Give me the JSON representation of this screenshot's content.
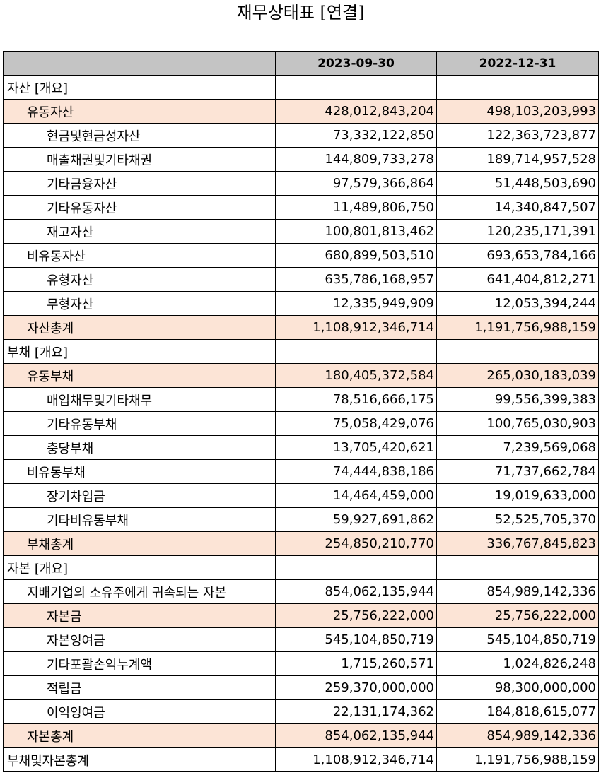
{
  "title": "재무상태표 [연결]",
  "columns": [
    "",
    "2023-09-30",
    "2022-12-31"
  ],
  "rows": [
    {
      "label": "자산 [개요]",
      "level": 0,
      "highlight": false,
      "v1": "",
      "v2": ""
    },
    {
      "label": "유동자산",
      "level": 1,
      "highlight": true,
      "v1": "428,012,843,204",
      "v2": "498,103,203,993"
    },
    {
      "label": "현금및현금성자산",
      "level": 2,
      "highlight": false,
      "v1": "73,332,122,850",
      "v2": "122,363,723,877"
    },
    {
      "label": "매출채권및기타채권",
      "level": 2,
      "highlight": false,
      "v1": "144,809,733,278",
      "v2": "189,714,957,528"
    },
    {
      "label": "기타금융자산",
      "level": 2,
      "highlight": false,
      "v1": "97,579,366,864",
      "v2": "51,448,503,690"
    },
    {
      "label": "기타유동자산",
      "level": 2,
      "highlight": false,
      "v1": "11,489,806,750",
      "v2": "14,340,847,507"
    },
    {
      "label": "재고자산",
      "level": 2,
      "highlight": false,
      "v1": "100,801,813,462",
      "v2": "120,235,171,391"
    },
    {
      "label": "비유동자산",
      "level": 1,
      "highlight": false,
      "v1": "680,899,503,510",
      "v2": "693,653,784,166"
    },
    {
      "label": "유형자산",
      "level": 2,
      "highlight": false,
      "v1": "635,786,168,957",
      "v2": "641,404,812,271"
    },
    {
      "label": "무형자산",
      "level": 2,
      "highlight": false,
      "v1": "12,335,949,909",
      "v2": "12,053,394,244"
    },
    {
      "label": "자산총계",
      "level": 1,
      "highlight": true,
      "v1": "1,108,912,346,714",
      "v2": "1,191,756,988,159"
    },
    {
      "label": "부채 [개요]",
      "level": 0,
      "highlight": false,
      "v1": "",
      "v2": ""
    },
    {
      "label": "유동부채",
      "level": 1,
      "highlight": true,
      "v1": "180,405,372,584",
      "v2": "265,030,183,039"
    },
    {
      "label": "매입채무및기타채무",
      "level": 2,
      "highlight": false,
      "v1": "78,516,666,175",
      "v2": "99,556,399,383"
    },
    {
      "label": "기타유동부채",
      "level": 2,
      "highlight": false,
      "v1": "75,058,429,076",
      "v2": "100,765,030,903"
    },
    {
      "label": "충당부채",
      "level": 2,
      "highlight": false,
      "v1": "13,705,420,621",
      "v2": "7,239,569,068"
    },
    {
      "label": "비유동부채",
      "level": 1,
      "highlight": false,
      "v1": "74,444,838,186",
      "v2": "71,737,662,784"
    },
    {
      "label": "장기차입금",
      "level": 2,
      "highlight": false,
      "v1": "14,464,459,000",
      "v2": "19,019,633,000"
    },
    {
      "label": "기타비유동부채",
      "level": 2,
      "highlight": false,
      "v1": "59,927,691,862",
      "v2": "52,525,705,370"
    },
    {
      "label": "부채총계",
      "level": 1,
      "highlight": true,
      "v1": "254,850,210,770",
      "v2": "336,767,845,823"
    },
    {
      "label": "자본 [개요]",
      "level": 0,
      "highlight": false,
      "v1": "",
      "v2": ""
    },
    {
      "label": "지배기업의 소유주에게 귀속되는 자본",
      "level": 1,
      "highlight": false,
      "v1": "854,062,135,944",
      "v2": "854,989,142,336"
    },
    {
      "label": "자본금",
      "level": 2,
      "highlight": true,
      "v1": "25,756,222,000",
      "v2": "25,756,222,000"
    },
    {
      "label": "자본잉여금",
      "level": 2,
      "highlight": false,
      "v1": "545,104,850,719",
      "v2": "545,104,850,719"
    },
    {
      "label": "기타포괄손익누계액",
      "level": 2,
      "highlight": false,
      "v1": "1,715,260,571",
      "v2": "1,024,826,248"
    },
    {
      "label": "적립금",
      "level": 2,
      "highlight": false,
      "v1": "259,370,000,000",
      "v2": "98,300,000,000"
    },
    {
      "label": "이익잉여금",
      "level": 2,
      "highlight": false,
      "v1": "22,131,174,362",
      "v2": "184,818,615,077"
    },
    {
      "label": "자본총계",
      "level": 1,
      "highlight": true,
      "v1": "854,062,135,944",
      "v2": "854,989,142,336"
    },
    {
      "label": "부채및자본총계",
      "level": 0,
      "highlight": false,
      "v1": "1,108,912,346,714",
      "v2": "1,191,756,988,159"
    }
  ],
  "colors": {
    "header_bg": "#c4c4c4",
    "highlight_bg": "#fce4d6",
    "border": "#000000"
  }
}
